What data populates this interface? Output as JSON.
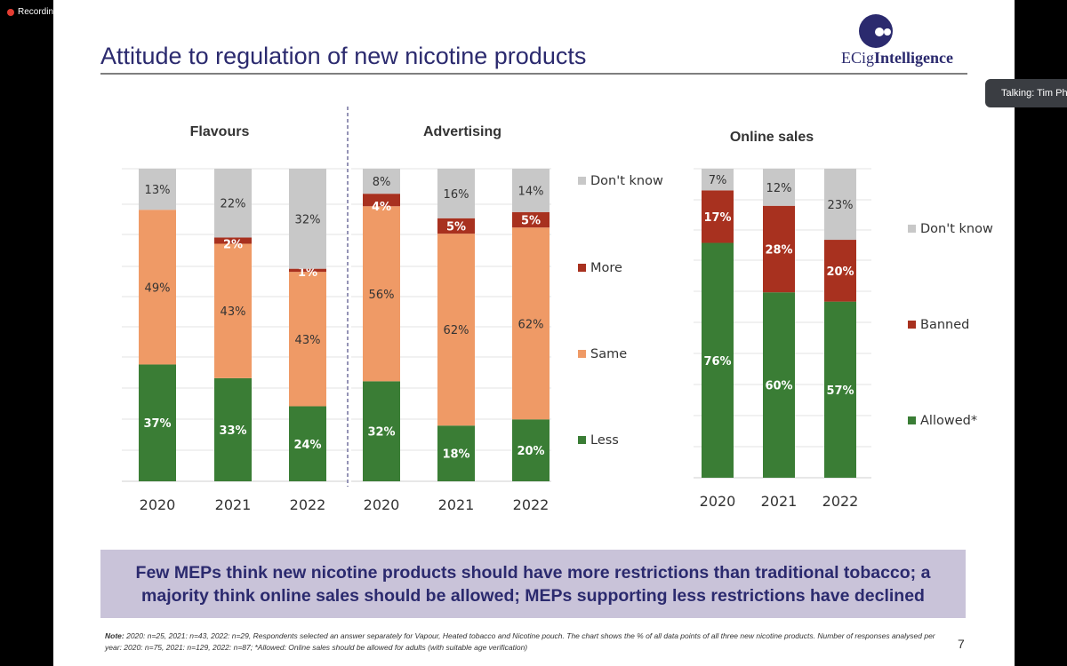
{
  "recording_label": "Recording",
  "talking_label": "Talking: Tim Ph",
  "slide": {
    "title": "Attitude to regulation of new nicotine products",
    "logo": {
      "prefix": "ECig",
      "bold": "Intelligence"
    },
    "conclusion": "Few MEPs think new nicotine products should have more restrictions than traditional tobacco; a majority think online sales should be allowed; MEPs supporting less restrictions have declined",
    "note_label": "Note:",
    "note_text": " 2020: n=25, 2021: n=43, 2022: n=29, Respondents selected an answer separately for Vapour, Heated tobacco and Nicotine pouch. The chart shows the % of all data points of all three new nicotine products. Number of responses analysed per year: 2020: n=75, 2021: n=129, 2022: n=87; *Allowed: Online sales should be allowed for adults (with suitable age verification)",
    "page_number": "7"
  },
  "colors": {
    "less": "#3a7d35",
    "same": "#ef9a66",
    "more": "#a8311f",
    "dont_know": "#c8c8c8",
    "title": "#2b2a6e"
  },
  "chart_data": [
    {
      "type": "bar",
      "stacked": true,
      "title": "Flavours",
      "categories": [
        "2020",
        "2021",
        "2022"
      ],
      "series": [
        {
          "name": "Less",
          "values": [
            37,
            33,
            24
          ]
        },
        {
          "name": "Same",
          "values": [
            49,
            43,
            43
          ]
        },
        {
          "name": "More",
          "values": [
            0,
            2,
            1
          ]
        },
        {
          "name": "Don't know",
          "values": [
            13,
            22,
            32
          ]
        }
      ]
    },
    {
      "type": "bar",
      "stacked": true,
      "title": "Advertising",
      "categories": [
        "2020",
        "2021",
        "2022"
      ],
      "series": [
        {
          "name": "Less",
          "values": [
            32,
            18,
            20
          ]
        },
        {
          "name": "Same",
          "values": [
            56,
            62,
            62
          ]
        },
        {
          "name": "More",
          "values": [
            4,
            5,
            5
          ]
        },
        {
          "name": "Don't know",
          "values": [
            8,
            16,
            14
          ]
        }
      ],
      "legend": [
        "Don't know",
        "More",
        "Same",
        "Less"
      ]
    },
    {
      "type": "bar",
      "stacked": true,
      "title": "Online sales",
      "categories": [
        "2020",
        "2021",
        "2022"
      ],
      "series": [
        {
          "name": "Allowed*",
          "values": [
            76,
            60,
            57
          ]
        },
        {
          "name": "Banned",
          "values": [
            17,
            28,
            20
          ]
        },
        {
          "name": "Don't know",
          "values": [
            7,
            12,
            23
          ]
        }
      ],
      "legend": [
        "Don't know",
        "Banned",
        "Allowed*"
      ]
    }
  ]
}
